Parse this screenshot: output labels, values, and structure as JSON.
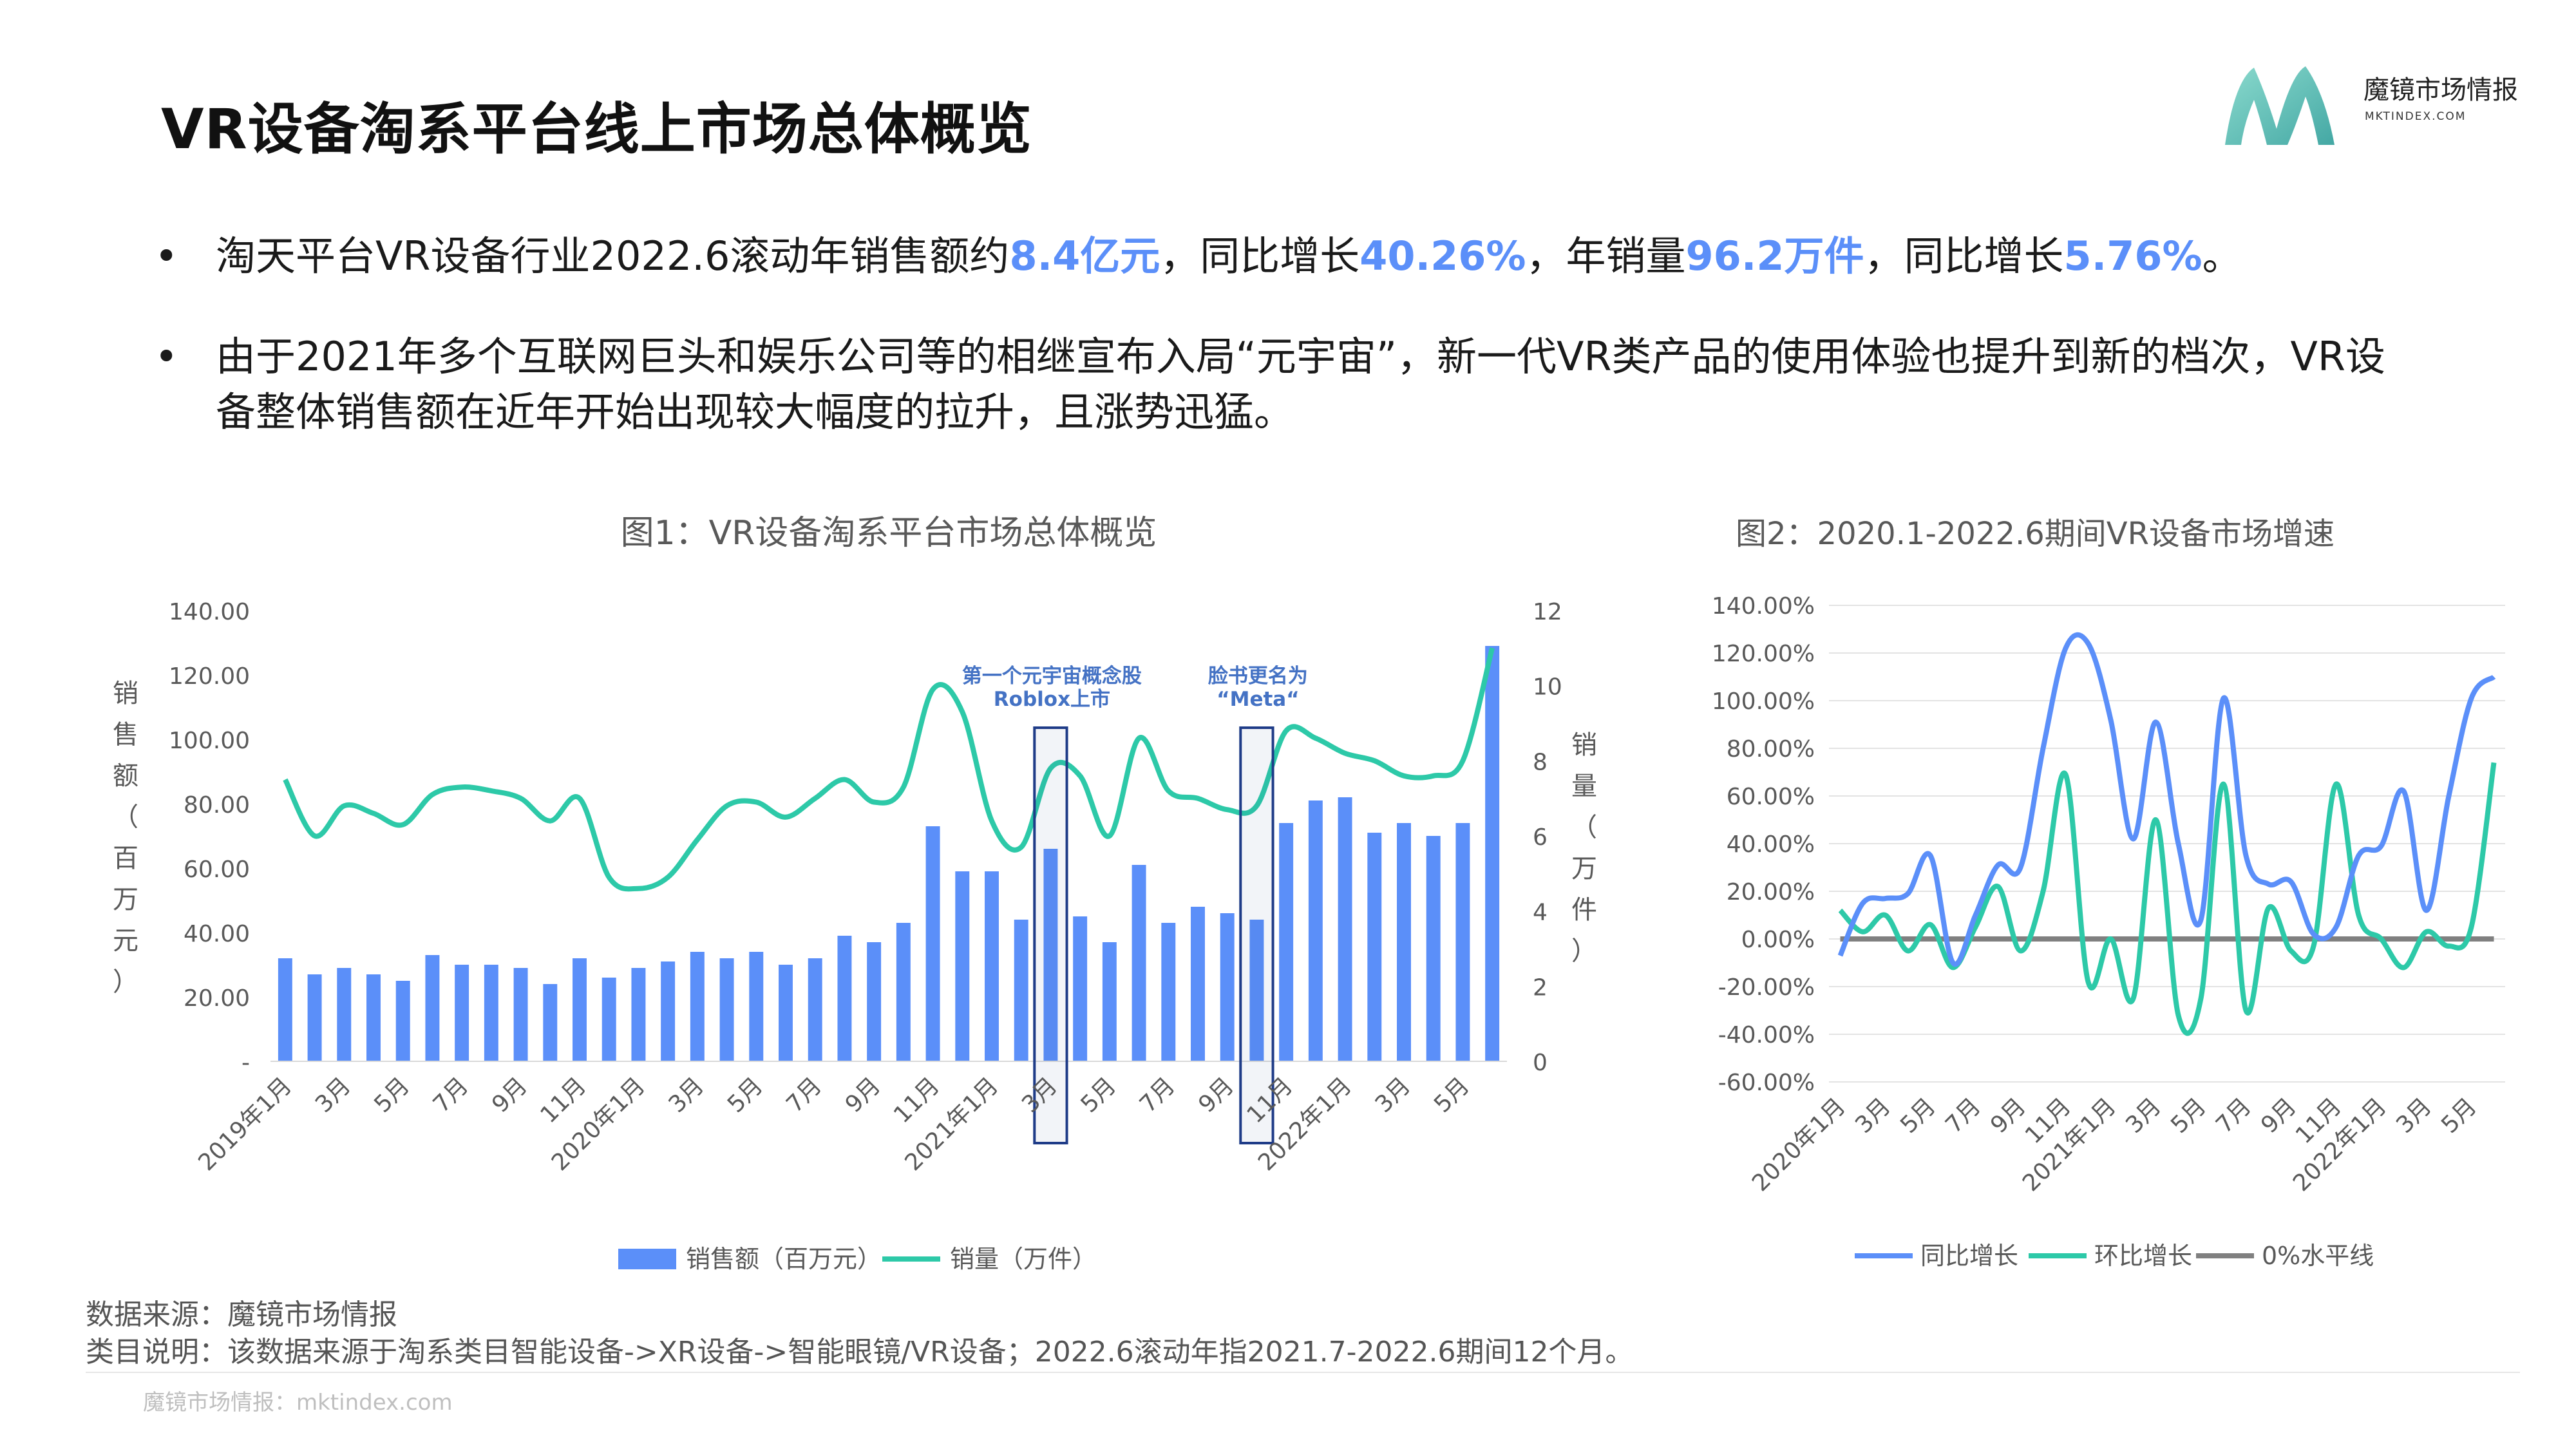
{
  "page": {
    "title": "VR设备淘系平台线上市场总体概览",
    "logo_name": "魔镜市场情报",
    "logo_sub": "MKTINDEX.COM"
  },
  "bullets": [
    {
      "parts": [
        {
          "text": "淘天平台VR设备行业2022.6滚动年销售额约",
          "hl": false
        },
        {
          "text": "8.4亿元",
          "hl": true
        },
        {
          "text": "，同比增长",
          "hl": false
        },
        {
          "text": "40.26%",
          "hl": true
        },
        {
          "text": "，年销量",
          "hl": false
        },
        {
          "text": "96.2万件",
          "hl": true
        },
        {
          "text": "，同比增长",
          "hl": false
        },
        {
          "text": "5.76%",
          "hl": true
        },
        {
          "text": "。",
          "hl": false
        }
      ]
    },
    {
      "parts": [
        {
          "text": "由于2021年多个互联网巨头和娱乐公司等的相继宣布入局“元宇宙”，新一代VR类产品的使用体验也提升到新的档次，VR设备整体销售额在近年开始出现较大幅度的拉升，且涨势迅猛。",
          "hl": false
        }
      ]
    }
  ],
  "colors": {
    "highlight": "#5B8FF9",
    "bar": "#5B8FF9",
    "volume_line": "#2DC9A8",
    "yoy_line": "#5B8FF9",
    "mom_line": "#2DC9A8",
    "zero_line": "#808080",
    "box": "#1F3C88",
    "annotation": "#4472C4"
  },
  "chart_data": [
    {
      "type": "bar",
      "title": "图1：VR设备淘系平台市场总体概览",
      "ylabel": "销售额（百万元）",
      "y2label": "销量（万件）",
      "ylim": [
        0,
        140
      ],
      "y2lim": [
        0,
        12
      ],
      "yticks": [
        "-",
        "20.00",
        "40.00",
        "60.00",
        "80.00",
        "100.00",
        "120.00",
        "140.00"
      ],
      "y2ticks": [
        "0",
        "2",
        "4",
        "6",
        "8",
        "10",
        "12"
      ],
      "categories": [
        "2019-01",
        "2019-02",
        "2019-03",
        "2019-04",
        "2019-05",
        "2019-06",
        "2019-07",
        "2019-08",
        "2019-09",
        "2019-10",
        "2019-11",
        "2019-12",
        "2020-01",
        "2020-02",
        "2020-03",
        "2020-04",
        "2020-05",
        "2020-06",
        "2020-07",
        "2020-08",
        "2020-09",
        "2020-10",
        "2020-11",
        "2020-12",
        "2021-01",
        "2021-02",
        "2021-03",
        "2021-04",
        "2021-05",
        "2021-06",
        "2021-07",
        "2021-08",
        "2021-09",
        "2021-10",
        "2021-11",
        "2021-12",
        "2022-01",
        "2022-02",
        "2022-03",
        "2022-04",
        "2022-05",
        "2022-06"
      ],
      "xtick_labels": [
        "2019年1月",
        "3月",
        "5月",
        "7月",
        "9月",
        "11月",
        "2020年1月",
        "3月",
        "5月",
        "7月",
        "9月",
        "11月",
        "2021年1月",
        "3月",
        "5月",
        "7月",
        "9月",
        "11月",
        "2022年1月",
        "3月",
        "5月"
      ],
      "series": [
        {
          "name": "销售额（百万元）",
          "kind": "bar",
          "axis": "left",
          "values": [
            32,
            27,
            29,
            27,
            25,
            33,
            30,
            30,
            29,
            24,
            32,
            26,
            29,
            31,
            34,
            32,
            34,
            30,
            32,
            39,
            37,
            43,
            73,
            59,
            59,
            44,
            66,
            45,
            37,
            61,
            43,
            48,
            46,
            44,
            74,
            81,
            82,
            71,
            74,
            70,
            74,
            129
          ]
        },
        {
          "name": "销量（万件）",
          "kind": "line",
          "axis": "right",
          "values": [
            7.5,
            6.0,
            6.8,
            6.6,
            6.3,
            7.1,
            7.3,
            7.2,
            7.0,
            6.4,
            7.0,
            4.9,
            4.6,
            4.9,
            5.9,
            6.8,
            6.9,
            6.5,
            7.0,
            7.5,
            6.9,
            7.3,
            9.9,
            9.3,
            6.4,
            5.7,
            7.8,
            7.6,
            6.0,
            8.6,
            7.2,
            7.0,
            6.7,
            6.8,
            8.8,
            8.6,
            8.2,
            8.0,
            7.6,
            7.6,
            8.0,
            11.0
          ]
        }
      ],
      "annotations": [
        {
          "text_lines": [
            "第一个元宇宙概念股",
            "Roblox上市"
          ],
          "category": "2021-03"
        },
        {
          "text_lines": [
            "脸书更名为",
            "“Meta“"
          ],
          "category": "2021-10"
        }
      ],
      "legend": "bottom"
    },
    {
      "type": "line",
      "title": "图2：2020.1-2022.6期间VR设备市场增速",
      "ylim": [
        -60,
        140
      ],
      "yticks": [
        "-60.00%",
        "-40.00%",
        "-20.00%",
        "0.00%",
        "20.00%",
        "40.00%",
        "60.00%",
        "80.00%",
        "100.00%",
        "120.00%",
        "140.00%"
      ],
      "categories": [
        "2020-01",
        "2020-02",
        "2020-03",
        "2020-04",
        "2020-05",
        "2020-06",
        "2020-07",
        "2020-08",
        "2020-09",
        "2020-10",
        "2020-11",
        "2020-12",
        "2021-01",
        "2021-02",
        "2021-03",
        "2021-04",
        "2021-05",
        "2021-06",
        "2021-07",
        "2021-08",
        "2021-09",
        "2021-10",
        "2021-11",
        "2021-12",
        "2022-01",
        "2022-02",
        "2022-03",
        "2022-04",
        "2022-05",
        "2022-06"
      ],
      "xtick_labels": [
        "2020年1月",
        "3月",
        "5月",
        "7月",
        "9月",
        "11月",
        "2021年1月",
        "3月",
        "5月",
        "7月",
        "9月",
        "11月",
        "2022年1月",
        "3月",
        "5月"
      ],
      "series": [
        {
          "name": "同比增长",
          "values": [
            -7,
            15,
            17,
            19,
            35,
            -10,
            10,
            31,
            30,
            80,
            122,
            124,
            92,
            42,
            91,
            40,
            8,
            101,
            35,
            23,
            24,
            2,
            5,
            35,
            39,
            62,
            12,
            60,
            101,
            110
          ]
        },
        {
          "name": "环比增长",
          "values": [
            12,
            3,
            10,
            -5,
            6,
            -12,
            5,
            22,
            -5,
            20,
            69,
            -18,
            0,
            -25,
            50,
            -32,
            -25,
            65,
            -30,
            13,
            -5,
            -3,
            65,
            10,
            0,
            -12,
            3,
            -3,
            5,
            74
          ]
        },
        {
          "name": "0%水平线",
          "values": [
            0,
            0,
            0,
            0,
            0,
            0,
            0,
            0,
            0,
            0,
            0,
            0,
            0,
            0,
            0,
            0,
            0,
            0,
            0,
            0,
            0,
            0,
            0,
            0,
            0,
            0,
            0,
            0,
            0,
            0
          ]
        }
      ],
      "legend": "bottom"
    }
  ],
  "footer": {
    "source": "数据来源：魔镜市场情报",
    "note": "类目说明：该数据来源于淘系类目智能设备->XR设备->智能眼镜/VR设备；2022.6滚动年指2021.7-2022.6期间12个月。",
    "site": "魔镜市场情报：mktindex.com"
  }
}
